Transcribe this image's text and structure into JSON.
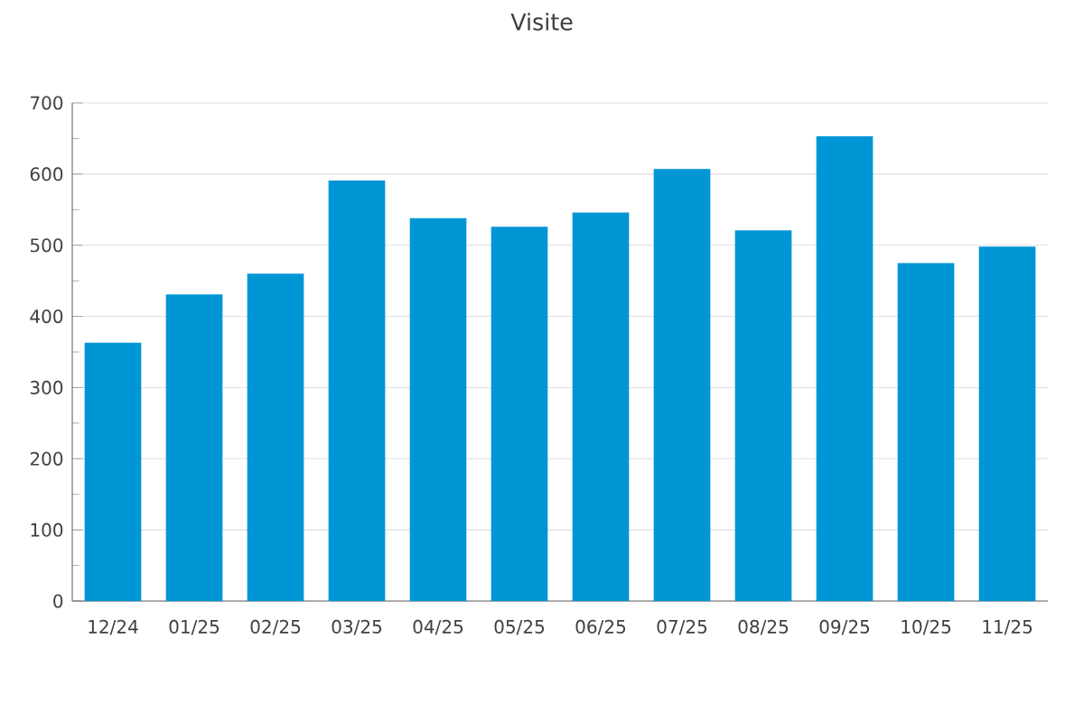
{
  "chart_data": {
    "type": "bar",
    "title": "Visite",
    "categories": [
      "12/24",
      "01/25",
      "02/25",
      "03/25",
      "04/25",
      "05/25",
      "06/25",
      "07/25",
      "08/25",
      "09/25",
      "10/25",
      "11/25"
    ],
    "values": [
      363,
      431,
      460,
      591,
      538,
      526,
      546,
      607,
      521,
      653,
      475,
      498
    ],
    "color": "#0096d6",
    "ylim": [
      0,
      700
    ],
    "yticks": [
      0,
      100,
      200,
      300,
      400,
      500,
      600,
      700
    ],
    "grid": "y"
  }
}
